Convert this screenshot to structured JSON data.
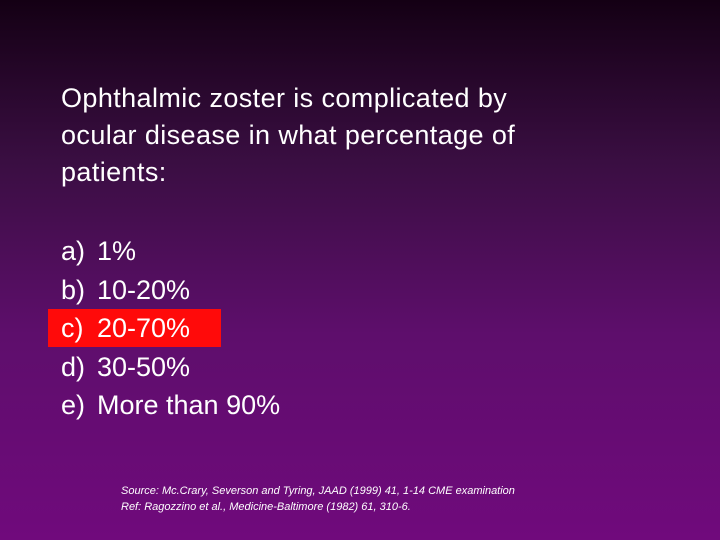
{
  "question": {
    "lines": [
      "Ophthalmic zoster is complicated by",
      "ocular disease in what percentage of",
      "patients:"
    ]
  },
  "options": [
    {
      "letter": "a)",
      "text": "1%"
    },
    {
      "letter": "b)",
      "text": "10-20%"
    },
    {
      "letter": "c)",
      "text": "20-70%"
    },
    {
      "letter": "d)",
      "text": "30-50%"
    },
    {
      "letter": "e)",
      "text": "More than 90%"
    }
  ],
  "highlighted_option": "c",
  "colors": {
    "highlight": "#ff0a0a",
    "text": "#ffffff"
  },
  "source": {
    "line1": "Source:  Mc.Crary, Severson and Tyring, JAAD (1999) 41, 1-14 CME examination",
    "line2": "Ref: Ragozzino et al., Medicine-Baltimore (1982) 61, 310-6."
  }
}
